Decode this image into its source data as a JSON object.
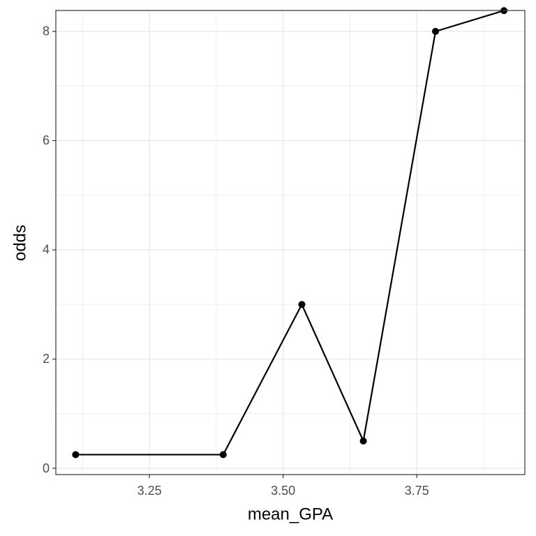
{
  "chart_data": {
    "type": "line",
    "x_label": "mean_GPA",
    "y_label": "odds",
    "x": [
      3.112,
      3.388,
      3.535,
      3.65,
      3.785,
      3.913
    ],
    "series": [
      {
        "color": "#000000",
        "values": [
          0.25,
          0.25,
          3,
          0.5,
          8,
          8.38
        ]
      }
    ],
    "markers": true,
    "xlim": [
      3.075,
      3.952
    ],
    "xticks": [
      3.25,
      {
        "value": 3.5,
        "label": "3.50"
      },
      3.75
    ],
    "ylim": [
      -0.115,
      8.383
    ],
    "yticks": [
      0,
      2,
      4,
      6,
      8
    ],
    "grid": true,
    "minor_grid": true
  }
}
